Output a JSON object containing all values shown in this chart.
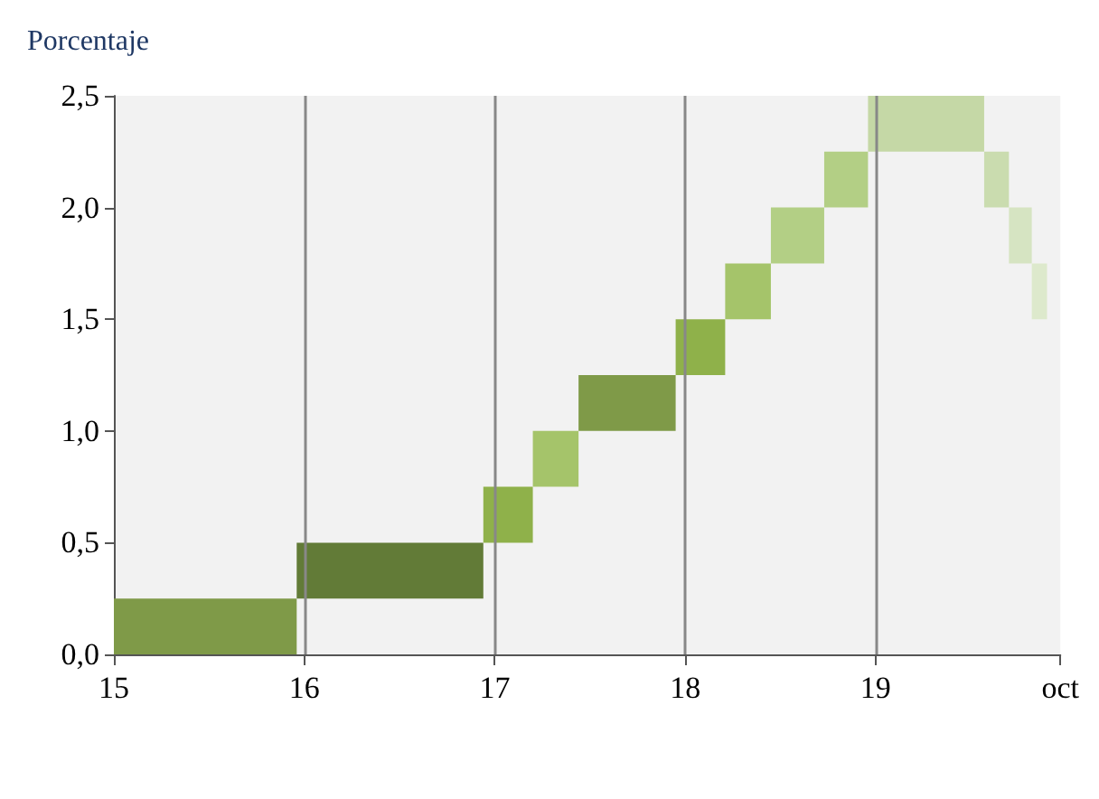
{
  "chart_data": {
    "type": "bar",
    "ylabel": "Porcentaje",
    "x": [
      15.48,
      16.45,
      17.07,
      17.32,
      17.695,
      18.08,
      18.33,
      18.59,
      18.845,
      19.265,
      19.635,
      19.76,
      19.86
    ],
    "base": [
      0,
      0.25,
      0.5,
      0.75,
      1.0,
      1.25,
      1.5,
      1.75,
      2.0,
      2.25,
      2.0,
      1.75,
      1.5
    ],
    "values": [
      0.25,
      0.25,
      0.25,
      0.25,
      0.25,
      0.25,
      0.25,
      0.25,
      0.25,
      0.25,
      0.25,
      0.25,
      0.25
    ],
    "colors": [
      "#7f9a48",
      "#627b37",
      "#8fb14a",
      "#a5c46a",
      "#7f9a48",
      "#8fb14a",
      "#a5c46a",
      "#b3cf85",
      "#b3cf85",
      "#c5d8a6",
      "#cadcaf",
      "#d6e4c2",
      "#dde9cc"
    ],
    "xlim": [
      15,
      19.97
    ],
    "xticks": [
      15,
      16,
      17,
      18,
      19,
      {
        "value": 19.97,
        "label": "oct"
      }
    ],
    "ylim": [
      0,
      2.5
    ],
    "yticks": [
      {
        "value": 0,
        "label": "0,0"
      },
      {
        "value": 0.5,
        "label": "0,5"
      },
      {
        "value": 1,
        "label": "1,0"
      },
      {
        "value": 1.5,
        "label": "1,5"
      },
      {
        "value": 2,
        "label": "2,0"
      },
      {
        "value": 2.5,
        "label": "2,5"
      }
    ],
    "grid": "x"
  }
}
